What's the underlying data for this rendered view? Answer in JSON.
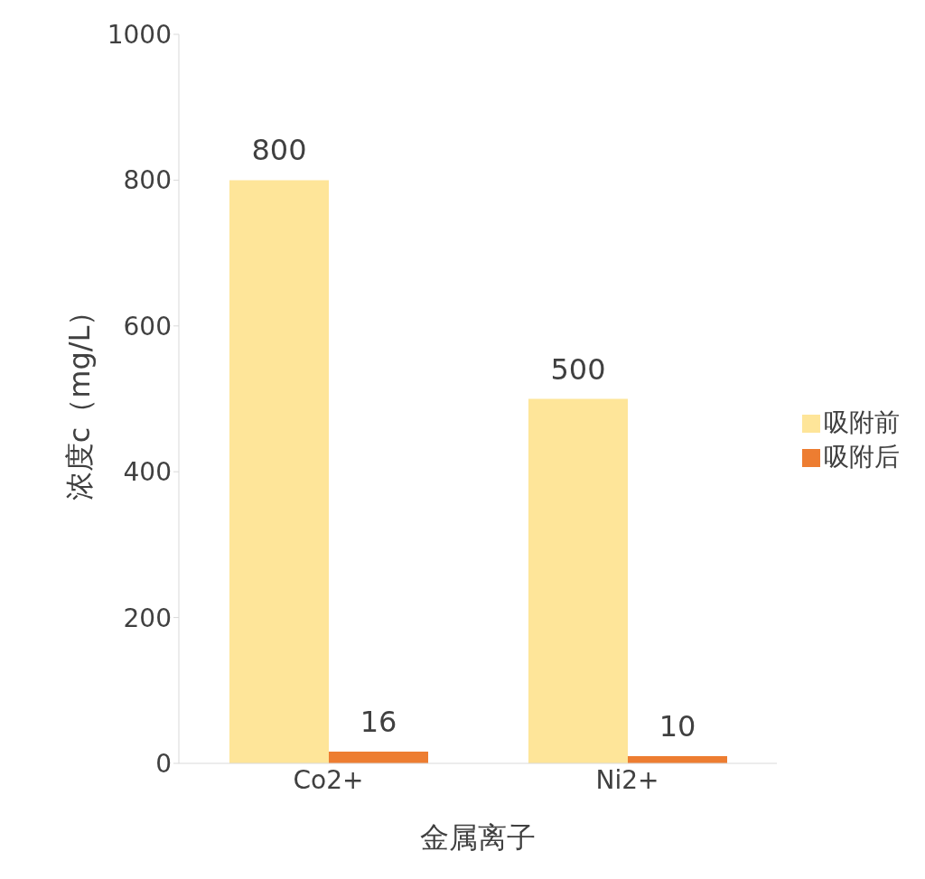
{
  "chart_data": {
    "type": "bar",
    "xlabel": "金属离子",
    "ylabel": "浓度c（mg/L）",
    "categories": [
      "Co2+",
      "Ni2+"
    ],
    "series": [
      {
        "name": "吸附前",
        "color": "#fee599",
        "values": [
          800,
          500
        ]
      },
      {
        "name": "吸附后",
        "color": "#ed7d31",
        "values": [
          16,
          10
        ]
      }
    ],
    "ylim": [
      0,
      1000
    ],
    "yticks": [
      0,
      200,
      400,
      600,
      800,
      1000
    ],
    "grid": false,
    "legend": "right",
    "data_labels": true
  }
}
